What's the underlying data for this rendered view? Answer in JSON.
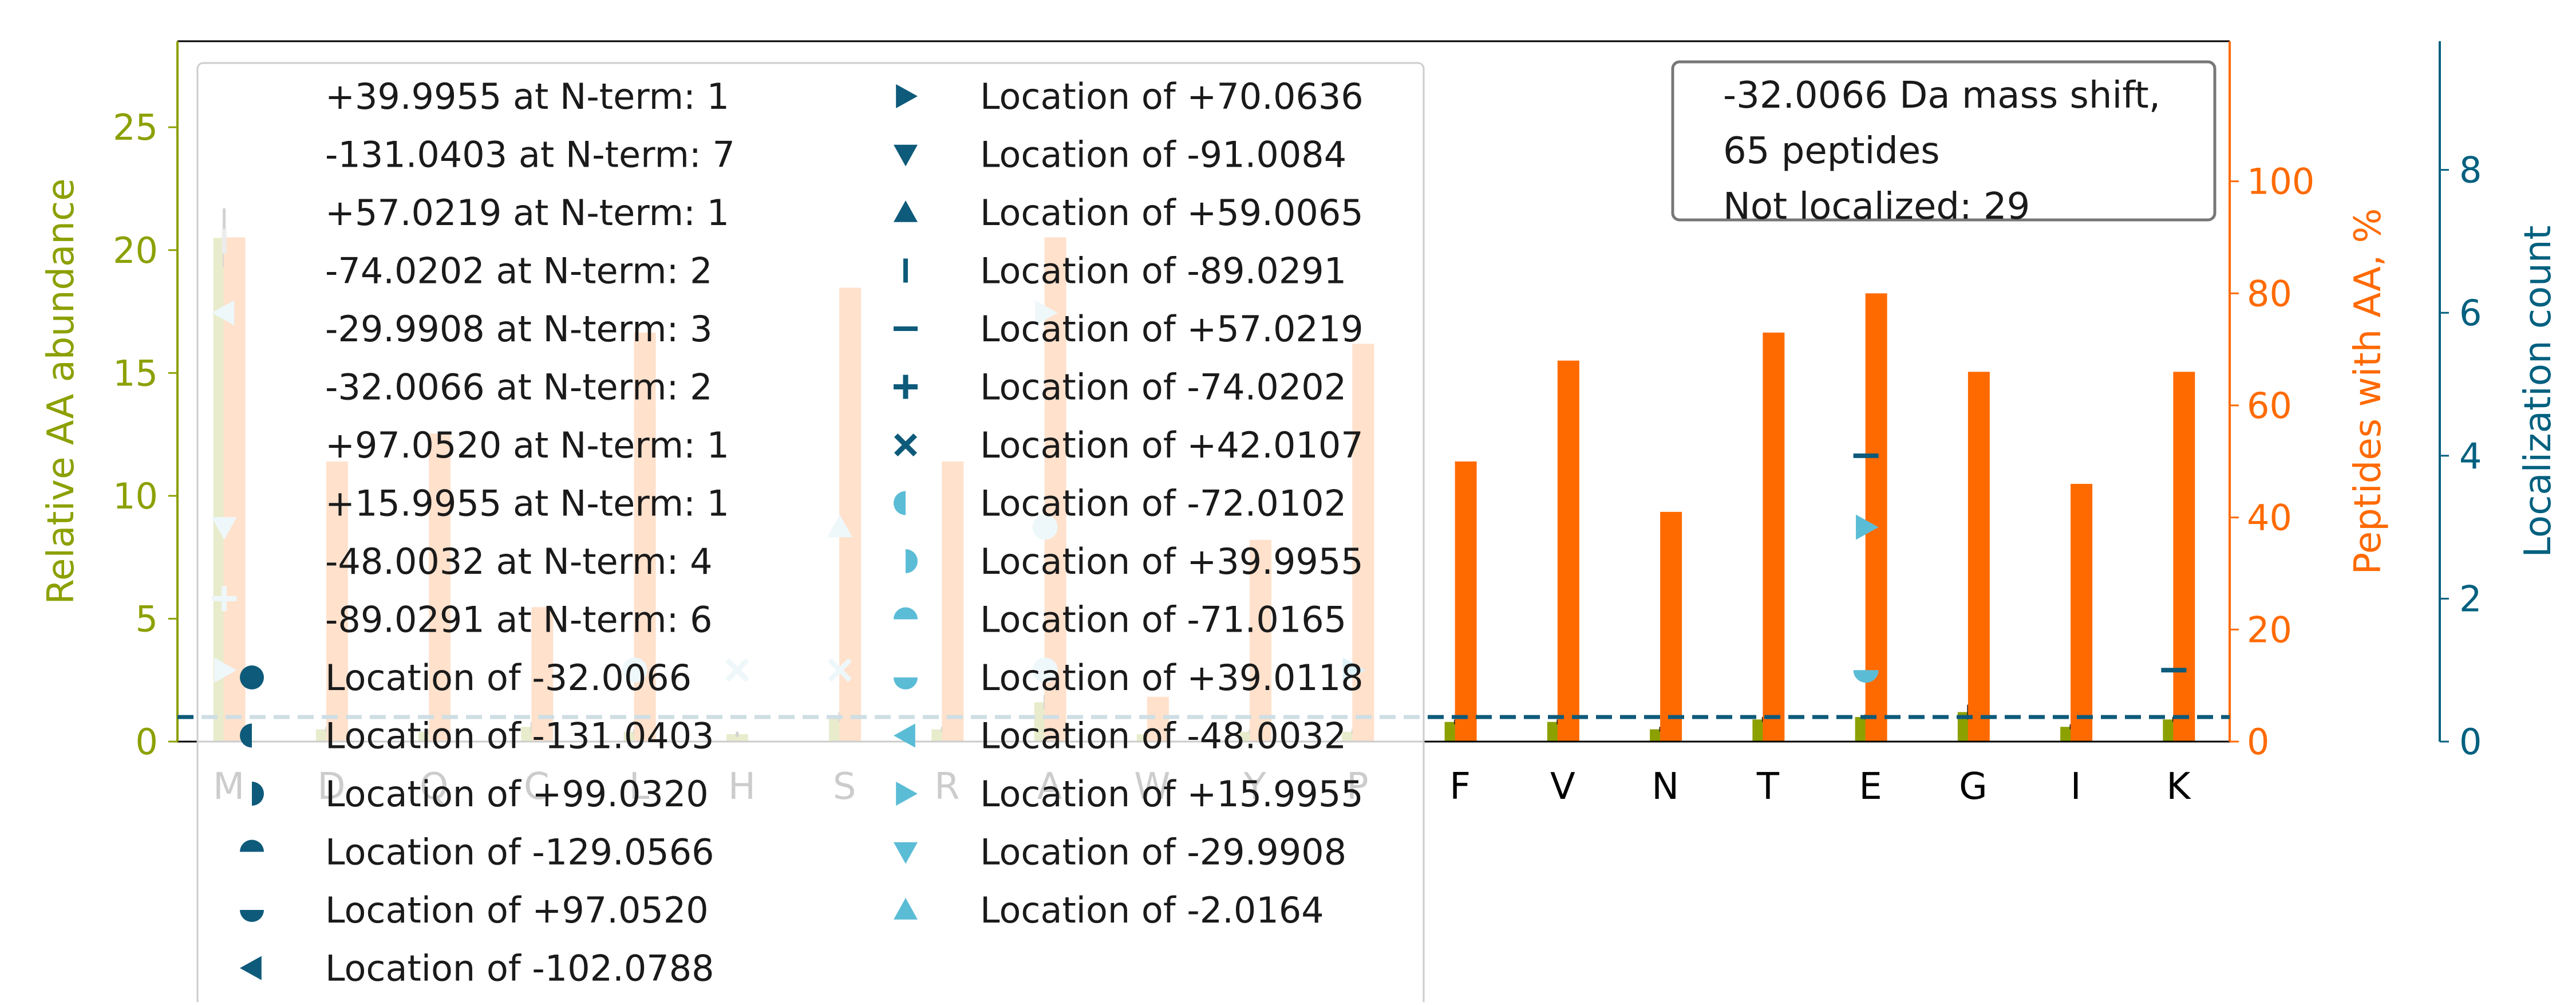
{
  "chart_data": {
    "type": "bar",
    "categories": [
      "M",
      "D",
      "Q",
      "C",
      "L",
      "H",
      "S",
      "R",
      "A",
      "W",
      "Y",
      "P",
      "F",
      "V",
      "N",
      "T",
      "E",
      "G",
      "I",
      "K"
    ],
    "axes": {
      "left": {
        "label": "Relative AA abundance",
        "ylim": [
          0,
          28.5
        ],
        "ticks": [
          0,
          5,
          10,
          15,
          20,
          25
        ],
        "color": "#8ca000"
      },
      "right1": {
        "label": "Peptides with AA, %",
        "ylim": [
          0,
          125
        ],
        "ticks": [
          0,
          20,
          40,
          60,
          80,
          100
        ],
        "color": "#ff6a00"
      },
      "right2": {
        "label": "Localization count",
        "ylim": [
          0,
          9.8
        ],
        "ticks": [
          0,
          2,
          4,
          6,
          8
        ],
        "color": "#00607f"
      }
    },
    "series": [
      {
        "name": "Relative AA abundance",
        "axis": "left",
        "values": [
          20.5,
          0.5,
          0.4,
          0.6,
          0.4,
          0.3,
          1.0,
          0.5,
          1.6,
          0.3,
          0.4,
          0.4,
          0.8,
          0.8,
          0.5,
          0.9,
          1.0,
          1.2,
          0.6,
          0.9
        ],
        "errors": [
          1.2,
          0.1,
          0.1,
          0.2,
          0.1,
          0.1,
          0.2,
          0.1,
          0.3,
          0.1,
          0.1,
          0.1,
          0.1,
          0.1,
          0.1,
          0.1,
          0.1,
          0.3,
          0.1,
          0.1
        ],
        "color": "#8ca000"
      },
      {
        "name": "Peptides with AA, %",
        "axis": "right1",
        "values": [
          90,
          50,
          55,
          24,
          73,
          0,
          81,
          50,
          90,
          8,
          36,
          71,
          50,
          68,
          41,
          73,
          80,
          66,
          46,
          66
        ],
        "color": "#ff6a00"
      }
    ],
    "dashed_lines": [
      {
        "axis": "left",
        "value": 1.0,
        "color": "#0e5a7a"
      }
    ],
    "localization_markers": [
      {
        "category": "M",
        "value": 7.0,
        "marker": "vline",
        "color": "#a0a0a0"
      },
      {
        "category": "M",
        "value": 6.0,
        "marker": "triangle-left",
        "color": "#a8d4e6"
      },
      {
        "category": "M",
        "value": 3.0,
        "marker": "triangle-down",
        "color": "#a8d4e6"
      },
      {
        "category": "M",
        "value": 2.0,
        "marker": "plus",
        "color": "#a8d4e6"
      },
      {
        "category": "M",
        "value": 1.0,
        "marker": "triangle-right",
        "color": "#a8d4e6"
      },
      {
        "category": "L",
        "value": 1.0,
        "marker": "circle",
        "color": "#a8d4e6"
      },
      {
        "category": "H",
        "value": 1.0,
        "marker": "x",
        "color": "#a8d4e6"
      },
      {
        "category": "S",
        "value": 1.0,
        "marker": "x",
        "color": "#a8d4e6"
      },
      {
        "category": "S",
        "value": 3.0,
        "marker": "triangle-up",
        "color": "#a8d4e6"
      },
      {
        "category": "A",
        "value": 6.0,
        "marker": "triangle-right",
        "color": "#a8d4e6"
      },
      {
        "category": "A",
        "value": 3.0,
        "marker": "circle",
        "color": "#a8d4e6"
      },
      {
        "category": "A",
        "value": 1.0,
        "marker": "circle",
        "color": "#a8d4e6"
      },
      {
        "category": "P",
        "value": 1.0,
        "marker": "triangle-right",
        "color": "#5bbcd6"
      },
      {
        "category": "E",
        "value": 4.0,
        "marker": "hline",
        "color": "#0e5a7a"
      },
      {
        "category": "E",
        "value": 3.0,
        "marker": "triangle-right",
        "color": "#5bbcd6"
      },
      {
        "category": "E",
        "value": 1.0,
        "marker": "half-circle-bottom",
        "color": "#5bbcd6"
      },
      {
        "category": "K",
        "value": 1.0,
        "marker": "hline",
        "color": "#0e5a7a"
      }
    ],
    "legend": {
      "placement": "upper-left",
      "col1": [
        {
          "label": "+39.9955 at N-term: 1",
          "marker": "none"
        },
        {
          "label": "-131.0403 at N-term: 7",
          "marker": "none"
        },
        {
          "label": "+57.0219 at N-term: 1",
          "marker": "none"
        },
        {
          "label": "-74.0202 at N-term: 2",
          "marker": "none"
        },
        {
          "label": "-29.9908 at N-term: 3",
          "marker": "none"
        },
        {
          "label": "-32.0066 at N-term: 2",
          "marker": "none"
        },
        {
          "label": "+97.0520 at N-term: 1",
          "marker": "none"
        },
        {
          "label": "+15.9955 at N-term: 1",
          "marker": "none"
        },
        {
          "label": "-48.0032 at N-term: 4",
          "marker": "none"
        },
        {
          "label": "-89.0291 at N-term: 6",
          "marker": "none"
        },
        {
          "label": "Location of -32.0066",
          "marker": "circle",
          "color": "#0e5a7a"
        },
        {
          "label": "Location of -131.0403",
          "marker": "half-circle-left",
          "color": "#0e5a7a"
        },
        {
          "label": "Location of +99.0320",
          "marker": "half-circle-right",
          "color": "#0e5a7a"
        },
        {
          "label": "Location of -129.0566",
          "marker": "half-circle-top",
          "color": "#0e5a7a"
        },
        {
          "label": "Location of +97.0520",
          "marker": "half-circle-bottom",
          "color": "#0e5a7a"
        },
        {
          "label": "Location of -102.0788",
          "marker": "triangle-left",
          "color": "#0e5a7a"
        }
      ],
      "col2": [
        {
          "label": "Location of +70.0636",
          "marker": "triangle-right",
          "color": "#0e5a7a"
        },
        {
          "label": "Location of -91.0084",
          "marker": "triangle-down",
          "color": "#0e5a7a"
        },
        {
          "label": "Location of +59.0065",
          "marker": "triangle-up",
          "color": "#0e5a7a"
        },
        {
          "label": "Location of -89.0291",
          "marker": "vline",
          "color": "#0e5a7a"
        },
        {
          "label": "Location of +57.0219",
          "marker": "hline",
          "color": "#0e5a7a"
        },
        {
          "label": "Location of -74.0202",
          "marker": "plus",
          "color": "#0e5a7a"
        },
        {
          "label": "Location of +42.0107",
          "marker": "x",
          "color": "#0e5a7a"
        },
        {
          "label": "Location of -72.0102",
          "marker": "half-circle-left",
          "color": "#5bbcd6"
        },
        {
          "label": "Location of +39.9955",
          "marker": "half-circle-right",
          "color": "#5bbcd6"
        },
        {
          "label": "Location of -71.0165",
          "marker": "half-circle-top",
          "color": "#5bbcd6"
        },
        {
          "label": "Location of +39.0118",
          "marker": "half-circle-bottom",
          "color": "#5bbcd6"
        },
        {
          "label": "Location of -48.0032",
          "marker": "triangle-left",
          "color": "#5bbcd6"
        },
        {
          "label": "Location of +15.9955",
          "marker": "triangle-right",
          "color": "#5bbcd6"
        },
        {
          "label": "Location of -29.9908",
          "marker": "triangle-down",
          "color": "#5bbcd6"
        },
        {
          "label": "Location of -2.0164",
          "marker": "triangle-up",
          "color": "#5bbcd6"
        }
      ]
    },
    "info_box": {
      "lines": [
        "-32.0066 Da mass shift,",
        "65 peptides",
        "Not localized: 29"
      ]
    }
  }
}
